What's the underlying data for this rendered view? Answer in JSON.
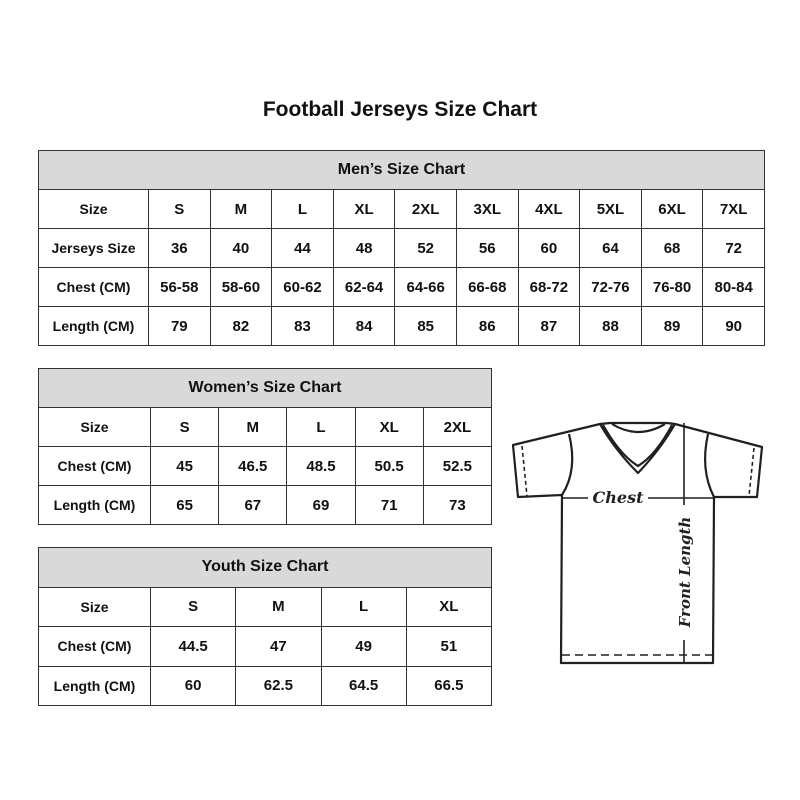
{
  "title": "Football Jerseys Size Chart",
  "men": {
    "heading": "Men’s Size Chart",
    "rows": [
      [
        "Size",
        "S",
        "M",
        "L",
        "XL",
        "2XL",
        "3XL",
        "4XL",
        "5XL",
        "6XL",
        "7XL"
      ],
      [
        "Jerseys Size",
        "36",
        "40",
        "44",
        "48",
        "52",
        "56",
        "60",
        "64",
        "68",
        "72"
      ],
      [
        "Chest (CM)",
        "56-58",
        "58-60",
        "60-62",
        "62-64",
        "64-66",
        "66-68",
        "68-72",
        "72-76",
        "76-80",
        "80-84"
      ],
      [
        "Length (CM)",
        "79",
        "82",
        "83",
        "84",
        "85",
        "86",
        "87",
        "88",
        "89",
        "90"
      ]
    ]
  },
  "women": {
    "heading": "Women’s Size Chart",
    "rows": [
      [
        "Size",
        "S",
        "M",
        "L",
        "XL",
        "2XL"
      ],
      [
        "Chest (CM)",
        "45",
        "46.5",
        "48.5",
        "50.5",
        "52.5"
      ],
      [
        "Length (CM)",
        "65",
        "67",
        "69",
        "71",
        "73"
      ]
    ]
  },
  "youth": {
    "heading": "Youth Size Chart",
    "rows": [
      [
        "Size",
        "S",
        "M",
        "L",
        "XL"
      ],
      [
        "Chest (CM)",
        "44.5",
        "47",
        "49",
        "51"
      ],
      [
        "Length (CM)",
        "60",
        "62.5",
        "64.5",
        "66.5"
      ]
    ]
  },
  "diagram": {
    "chest_label": "Chest",
    "length_label": "Front Length"
  },
  "colors": {
    "header_fill": "#d9d9d9",
    "border": "#333333"
  }
}
